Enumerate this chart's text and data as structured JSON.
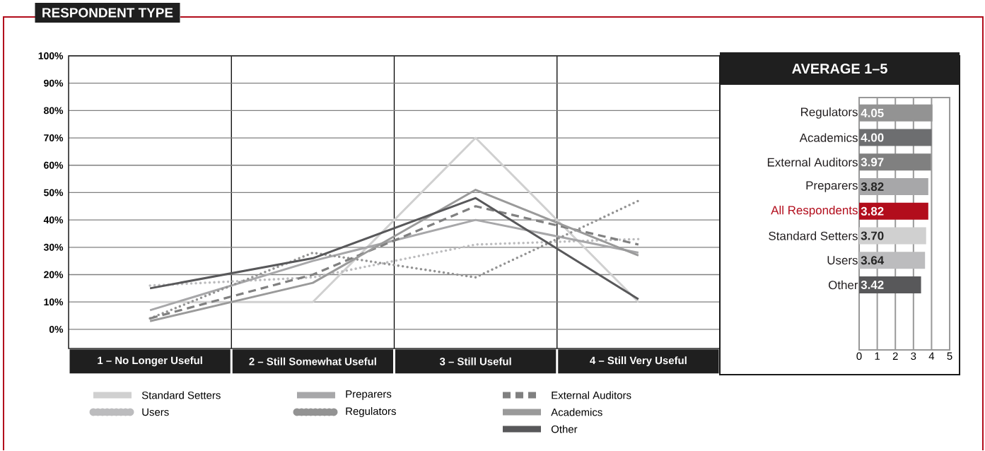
{
  "chart_data": [
    {
      "type": "line",
      "title": "RESPONDENT TYPE",
      "categories": [
        "1 – No Longer Useful",
        "2 – Still Somewhat Useful",
        "3 – Still Useful",
        "4 – Still Very Useful"
      ],
      "series": [
        {
          "name": "Standard Setters",
          "color": "#d0d0d0",
          "line_style": "solid",
          "values": [
            10,
            10,
            70,
            10
          ]
        },
        {
          "name": "Users",
          "color": "#bcbcbe",
          "line_style": "dotted",
          "values": [
            16,
            19,
            31,
            33
          ]
        },
        {
          "name": "Preparers",
          "color": "#a7a7a9",
          "line_style": "solid",
          "values": [
            7,
            25,
            40,
            28
          ]
        },
        {
          "name": "Regulators",
          "color": "#939393",
          "line_style": "dotted",
          "values": [
            4,
            28,
            19,
            47
          ]
        },
        {
          "name": "External Auditors",
          "color": "#808080",
          "line_style": "dashed",
          "values": [
            4,
            20,
            45,
            31
          ]
        },
        {
          "name": "Academics",
          "color": "#9a9a9a",
          "line_style": "solid",
          "values": [
            3,
            17,
            51,
            27
          ]
        },
        {
          "name": "Other",
          "color": "#58585a",
          "line_style": "solid",
          "values": [
            15,
            26,
            48,
            11
          ]
        }
      ],
      "ylim": [
        -7,
        100
      ],
      "yticks": [
        {
          "value": 0,
          "label": "0%"
        },
        {
          "value": 10,
          "label": "10%"
        },
        {
          "value": 20,
          "label": "20%"
        },
        {
          "value": 30,
          "label": "30%"
        },
        {
          "value": 40,
          "label": "40%"
        },
        {
          "value": 50,
          "label": "50%"
        },
        {
          "value": 60,
          "label": "60%"
        },
        {
          "value": 70,
          "label": "70%"
        },
        {
          "value": 80,
          "label": "80%"
        },
        {
          "value": 90,
          "label": "90%"
        },
        {
          "value": 100,
          "label": "100%"
        }
      ],
      "grid": "y",
      "legend": "bottom"
    },
    {
      "type": "bar",
      "orientation": "horizontal",
      "title": "AVERAGE 1–5",
      "categories": [
        "Regulators",
        "Academics",
        "External Auditors",
        "Preparers",
        "All Respondents",
        "Standard Setters",
        "Users",
        "Other"
      ],
      "values": [
        4.05,
        4.0,
        3.97,
        3.82,
        3.82,
        3.7,
        3.64,
        3.42
      ],
      "value_labels": [
        "4.05",
        "4.00",
        "3.97",
        "3.82",
        "3.82",
        "3.70",
        "3.64",
        "3.42"
      ],
      "colors": [
        "#939393",
        "#6d6e70",
        "#808080",
        "#a7a7a9",
        "#b20d1c",
        "#d0d0d0",
        "#bcbcbe",
        "#58585a"
      ],
      "xlim": [
        0,
        5
      ],
      "xticks": [
        0,
        1,
        2,
        3,
        4,
        5
      ],
      "grid": "x"
    }
  ]
}
